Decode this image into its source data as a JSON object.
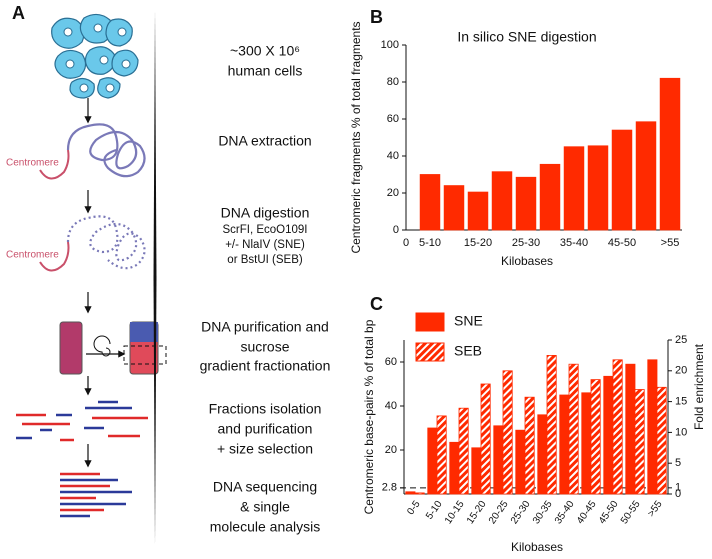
{
  "panel_a": {
    "label": "A",
    "steps": [
      {
        "lines": [
          "~300 X 10⁶",
          "human cells"
        ]
      },
      {
        "lines": [
          "DNA extraction"
        ]
      },
      {
        "lines": [
          "DNA digestion",
          "ScrFI, EcoO109I",
          "+/- NlaIV (SNE)",
          "or BstUI (SEB)"
        ]
      },
      {
        "lines": [
          "DNA purification and",
          "sucrose",
          "gradient fractionation"
        ]
      },
      {
        "lines": [
          "Fractions isolation",
          "and purification",
          "+ size selection"
        ]
      },
      {
        "lines": [
          "DNA sequencing",
          "& single",
          "molecule analysis"
        ]
      }
    ],
    "centromere_labels": [
      "Centromere",
      "Centromere"
    ]
  },
  "chart_data": [
    {
      "type": "bar",
      "panel_label": "B",
      "title": "In silico SNE digestion",
      "y_label": "Centromeric fragments % of total fragments",
      "x_label": "Kilobases",
      "categories": [
        "0",
        "5-10",
        null,
        "15-20",
        null,
        "25-30",
        null,
        "35-40",
        null,
        "45-50",
        null,
        ">55"
      ],
      "values": [
        null,
        30,
        24,
        20.5,
        31.5,
        28.5,
        35.5,
        45,
        45.5,
        54,
        58.5,
        82
      ],
      "color": "#ff2a00",
      "ylim": [
        0,
        100
      ],
      "yticks": [
        0,
        20,
        40,
        60,
        80,
        100
      ]
    },
    {
      "type": "bar",
      "panel_label": "C",
      "y_label": "Centromeric base-pairs % of total bp",
      "y2_label": "Fold enrichment",
      "x_label": "Kilobases",
      "categories": [
        "0-5",
        "5-10",
        "10-15",
        "15-20",
        "20-25",
        "25-30",
        "30-35",
        "35-40",
        "40-45",
        "45-50",
        "50-55",
        ">55"
      ],
      "series": [
        {
          "name": "SNE",
          "color": "#ff2a00",
          "hatch": false,
          "values": [
            1,
            30,
            23.5,
            21,
            31,
            29,
            36,
            45,
            46,
            53.5,
            59,
            61
          ]
        },
        {
          "name": "SEB",
          "color": "#ff2a00",
          "hatch": true,
          "values": [
            0.5,
            35.5,
            39,
            50,
            56,
            44,
            63,
            59,
            52,
            61,
            47.5,
            48.5
          ]
        }
      ],
      "ylim": [
        0,
        70
      ],
      "yticks": [
        2.8,
        20,
        40,
        60
      ],
      "y2lim": [
        0,
        25
      ],
      "y2ticks": [
        0,
        1,
        5,
        10,
        15,
        20,
        25
      ],
      "legend": "upper left"
    }
  ]
}
